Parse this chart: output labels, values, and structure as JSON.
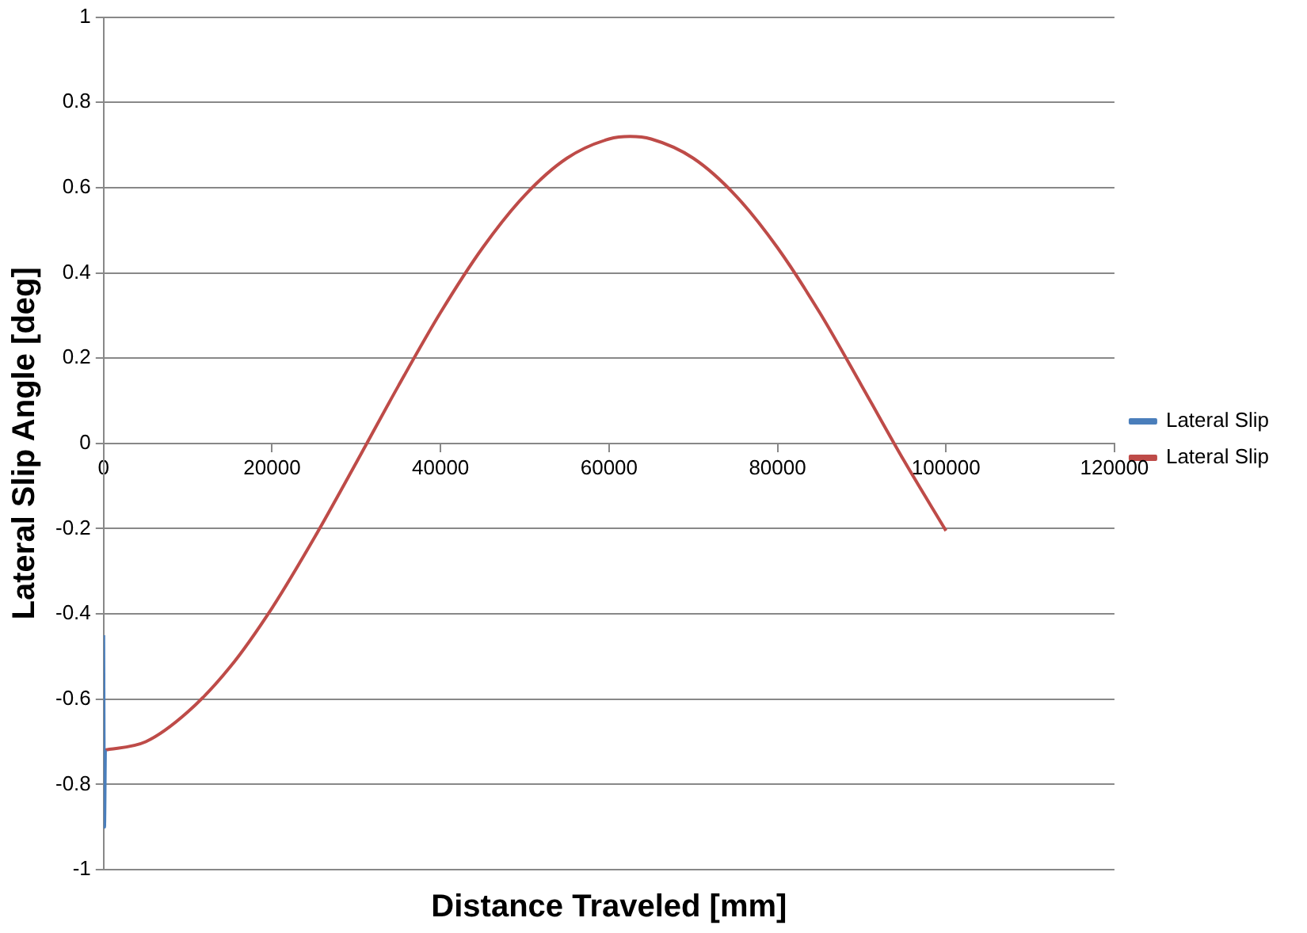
{
  "chart_data": {
    "type": "line",
    "xlabel": "Distance Traveled [mm]",
    "ylabel": "Lateral Slip Angle [deg]",
    "xlim": [
      0,
      120000
    ],
    "xticks": [
      0,
      20000,
      40000,
      60000,
      80000,
      100000,
      120000
    ],
    "ylim": [
      -1,
      1
    ],
    "yticks": [
      -1,
      -0.8,
      -0.6,
      -0.4,
      -0.2,
      0,
      0.2,
      0.4,
      0.6,
      0.8,
      1
    ],
    "grid": "y",
    "legend": "right",
    "marker": "none",
    "line_style": "solid",
    "series": [
      {
        "name": "Lateral Slip",
        "color": "#4a7ebb",
        "x": [
          0,
          100,
          200
        ],
        "values": [
          -0.45,
          -0.9,
          -0.72
        ]
      },
      {
        "name": "Lateral Slip",
        "color": "#be4b48",
        "x": [
          0,
          5000,
          10000,
          15000,
          20000,
          25000,
          30000,
          35000,
          40000,
          45000,
          50000,
          55000,
          60000,
          62500,
          65000,
          70000,
          75000,
          80000,
          85000,
          90000,
          95000,
          100000
        ],
        "values": [
          -0.72,
          -0.7,
          -0.63,
          -0.525,
          -0.386,
          -0.222,
          -0.045,
          0.135,
          0.307,
          0.459,
          0.582,
          0.669,
          0.714,
          0.72,
          0.714,
          0.669,
          0.582,
          0.459,
          0.307,
          0.135,
          -0.04,
          -0.205
        ]
      }
    ]
  }
}
